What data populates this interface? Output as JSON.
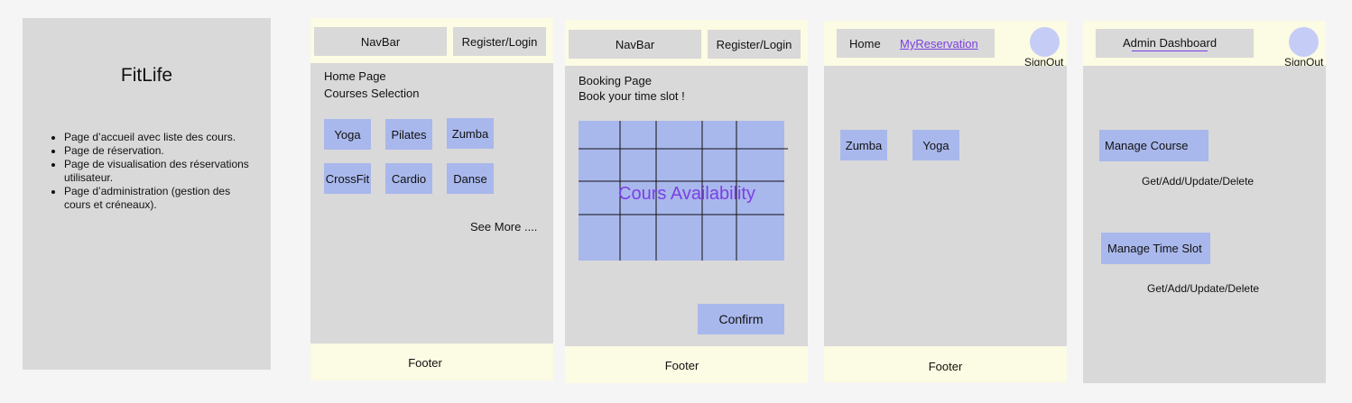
{
  "intro": {
    "title": "FitLife",
    "bullets": [
      "Page d’accueil avec liste des cours.",
      "Page de réservation.",
      "Page de visualisation des réservations utilisateur.",
      "Page d’administration (gestion des cours et créneaux)."
    ]
  },
  "home": {
    "navbar": "NavBar",
    "register": "Register/Login",
    "heading": "Home Page",
    "subheading": "Courses Selection",
    "courses": [
      "Yoga",
      "Pilates",
      "Zumba",
      "CrossFit",
      "Cardio",
      "Danse"
    ],
    "see_more": "See More ....",
    "footer": "Footer"
  },
  "booking": {
    "navbar": "NavBar",
    "register": "Register/Login",
    "heading": "Booking Page",
    "subheading": "Book your time slot !",
    "grid_label": "Cours Availability",
    "confirm": "Confirm",
    "footer": "Footer"
  },
  "reservation": {
    "nav_home": "Home",
    "nav_myres": "MyReservation",
    "signout": "SignOut",
    "courses": [
      "Zumba",
      "Yoga"
    ],
    "footer": "Footer"
  },
  "admin": {
    "title": "Admin Dashboard",
    "signout": "SignOut",
    "manage_course": "Manage Course",
    "course_ops": "Get/Add/Update/Delete",
    "manage_slot": "Manage Time Slot",
    "slot_ops": "Get/Add/Update/Delete"
  },
  "colors": {
    "panel": "#d9d9d9",
    "header": "#fcfbe3",
    "button": "#a9b8ec",
    "link": "#7b3fe4"
  }
}
